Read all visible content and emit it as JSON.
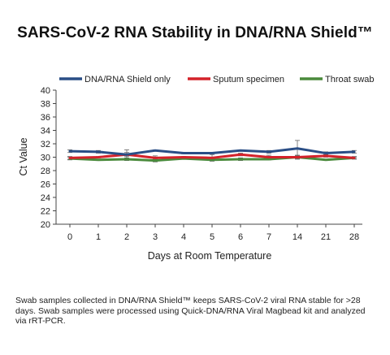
{
  "chart_data": {
    "type": "line",
    "title": "SARS-CoV-2 RNA Stability in DNA/RNA Shield™",
    "xlabel": "Days at Room Temperature",
    "ylabel": "Ct Value",
    "categories": [
      "0",
      "1",
      "2",
      "3",
      "4",
      "5",
      "6",
      "7",
      "14",
      "21",
      "28"
    ],
    "ylim": [
      20,
      40
    ],
    "yticks": [
      20,
      22,
      24,
      26,
      28,
      30,
      32,
      34,
      36,
      38,
      40
    ],
    "grid": false,
    "legend_position": "top",
    "series": [
      {
        "name": "DNA/RNA Shield only",
        "color": "#2a4e86",
        "values": [
          30.9,
          30.8,
          30.4,
          31.0,
          30.6,
          30.6,
          31.0,
          30.8,
          31.3,
          30.6,
          30.8
        ],
        "errors": [
          0.2,
          0.2,
          0.3,
          0.1,
          0.1,
          0.1,
          0.1,
          0.2,
          1.2,
          0.2,
          0.2
        ]
      },
      {
        "name": "Sputum specimen",
        "color": "#d4222a",
        "values": [
          29.9,
          30.0,
          30.4,
          29.9,
          30.0,
          29.9,
          30.4,
          30.0,
          30.0,
          30.2,
          29.9
        ],
        "errors": [
          0.2,
          0.1,
          0.7,
          0.3,
          0.1,
          0.5,
          0.2,
          0.3,
          0.3,
          0.2,
          0.2
        ]
      },
      {
        "name": "Throat swab",
        "color": "#4a8a3c",
        "values": [
          29.8,
          29.6,
          29.7,
          29.5,
          29.8,
          29.6,
          29.7,
          29.7,
          30.0,
          29.6,
          29.9
        ],
        "errors": [
          0.2,
          0.1,
          0.2,
          0.2,
          0.1,
          0.1,
          0.2,
          0.1,
          0.2,
          0.1,
          0.1
        ]
      }
    ]
  },
  "caption": "Swab samples collected in DNA/RNA Shield™ keeps SARS-CoV-2 viral RNA stable for >28 days. Swab samples were processed using Quick-DNA/RNA Viral Magbead kit and analyzed via rRT-PCR."
}
